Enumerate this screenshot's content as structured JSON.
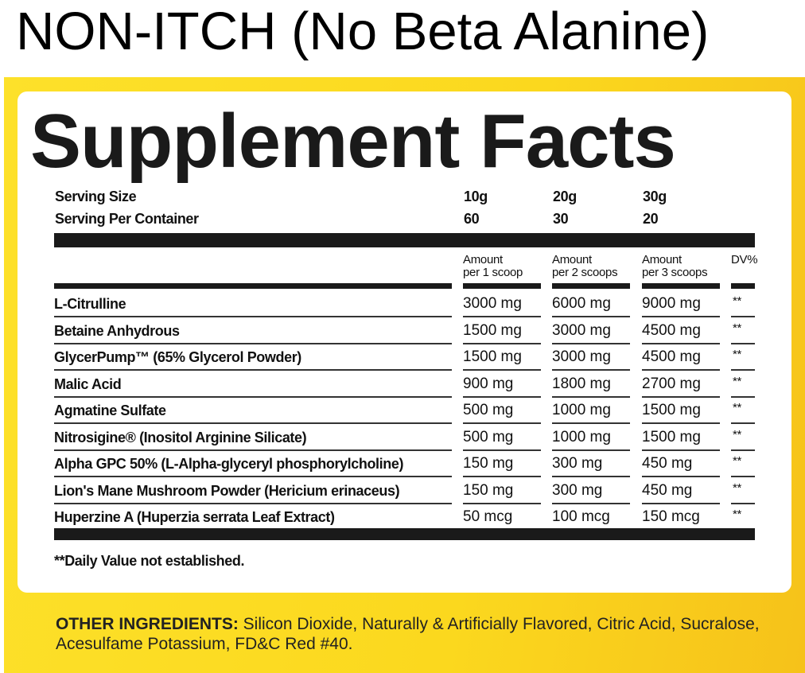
{
  "heading": "NON-ITCH (No Beta Alanine)",
  "panel_title": "Supplement Facts",
  "serving": {
    "size_label": "Serving Size",
    "per_container_label": "Serving Per Container",
    "sizes": [
      "10g",
      "20g",
      "30g"
    ],
    "per_container": [
      "60",
      "30",
      "20"
    ]
  },
  "columns": [
    {
      "line1": "Amount",
      "line2": "per 1 scoop"
    },
    {
      "line1": "Amount",
      "line2": "per 2 scoops"
    },
    {
      "line1": "Amount",
      "line2": "per 3 scoops"
    }
  ],
  "dv_header": "DV%",
  "ingredients": [
    {
      "name": "L-Citrulline",
      "amounts": [
        "3000 mg",
        "6000 mg",
        "9000 mg"
      ],
      "dv": "**"
    },
    {
      "name": "Betaine Anhydrous",
      "amounts": [
        "1500 mg",
        "3000 mg",
        "4500 mg"
      ],
      "dv": "**"
    },
    {
      "name": "GlycerPump™ (65% Glycerol Powder)",
      "amounts": [
        "1500 mg",
        "3000 mg",
        "4500 mg"
      ],
      "dv": "**"
    },
    {
      "name": "Malic Acid",
      "amounts": [
        "900 mg",
        "1800 mg",
        "2700 mg"
      ],
      "dv": "**"
    },
    {
      "name": "Agmatine Sulfate",
      "amounts": [
        "500 mg",
        "1000 mg",
        "1500 mg"
      ],
      "dv": "**"
    },
    {
      "name": "Nitrosigine® (Inositol Arginine Silicate)",
      "amounts": [
        "500 mg",
        "1000 mg",
        "1500 mg"
      ],
      "dv": "**"
    },
    {
      "name": "Alpha GPC 50% (L-Alpha-glyceryl phosphorylcholine)",
      "amounts": [
        "150 mg",
        "300 mg",
        "450 mg"
      ],
      "dv": "**"
    },
    {
      "name": "Lion's Mane Mushroom Powder (Hericium erinaceus)",
      "amounts": [
        "150 mg",
        "300 mg",
        "450 mg"
      ],
      "dv": "**"
    },
    {
      "name": "Huperzine A (Huperzia serrata Leaf Extract)",
      "amounts": [
        "50 mcg",
        "100 mcg",
        "150 mcg"
      ],
      "dv": "**"
    }
  ],
  "footnote": "**Daily Value not established.",
  "other_ingredients": {
    "label": "OTHER INGREDIENTS:",
    "text": " Silicon Dioxide, Naturally & Artificially Flavored, Citric Acid, Sucralose, Acesulfame Potassium, FD&C Red #40."
  },
  "colors": {
    "panel_yellow": "#fbd81e",
    "ink": "#1a1a1a"
  }
}
